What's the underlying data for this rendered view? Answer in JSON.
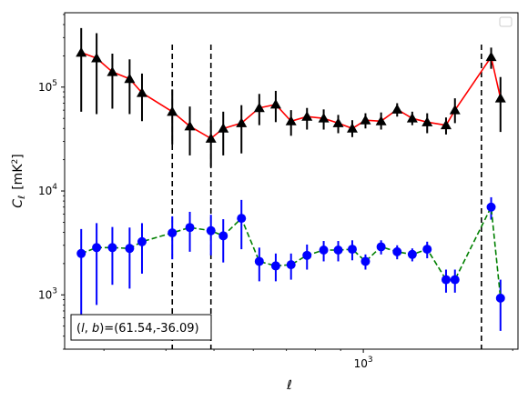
{
  "chart_data": {
    "type": "scatter",
    "xlabel": "ℓ",
    "ylabel_main": "C",
    "ylabel_sub": "ℓ",
    "ylabel_unit": "[mK",
    "ylabel_unit_exp": "2",
    "ylabel_unit_close": "]",
    "xscale": "log",
    "yscale": "log",
    "xlim": [
      250,
      2050
    ],
    "ylim": [
      300,
      520000
    ],
    "yticks": [
      {
        "value": 1000,
        "base": "10",
        "exp": "3"
      },
      {
        "value": 10000,
        "base": "10",
        "exp": "4"
      },
      {
        "value": 100000,
        "base": "10",
        "exp": "5"
      }
    ],
    "xticks": [
      {
        "value": 1000,
        "base": "10",
        "exp": "3"
      }
    ],
    "vlines": [
      412,
      493,
      1730
    ],
    "annotation": "(l, b)=(61.54,-36.09)",
    "annotation_prefix": "(",
    "annotation_l": "l",
    "annotation_sep": ", ",
    "annotation_b": "b",
    "annotation_rest": ")=(61.54,-36.09)",
    "legend": "top-right (empty)",
    "series": [
      {
        "marker": "triangle",
        "marker_color": "#000000",
        "line_color": "#ff0000",
        "line_style": "solid",
        "points": [
          {
            "x": 270,
            "y": 215000,
            "lo": 58000,
            "hi": 370000
          },
          {
            "x": 290,
            "y": 190000,
            "lo": 55000,
            "hi": 330000
          },
          {
            "x": 312,
            "y": 140000,
            "lo": 62000,
            "hi": 210000
          },
          {
            "x": 338,
            "y": 120000,
            "lo": 55000,
            "hi": 185000
          },
          {
            "x": 358,
            "y": 88000,
            "lo": 47000,
            "hi": 135000
          },
          {
            "x": 412,
            "y": 58000,
            "lo": 28000,
            "hi": 95000
          },
          {
            "x": 447,
            "y": 42000,
            "lo": 22000,
            "hi": 65000
          },
          {
            "x": 493,
            "y": 32000,
            "lo": 17000,
            "hi": 48000
          },
          {
            "x": 522,
            "y": 40000,
            "lo": 22000,
            "hi": 58000
          },
          {
            "x": 568,
            "y": 45000,
            "lo": 23000,
            "hi": 67000
          },
          {
            "x": 617,
            "y": 63000,
            "lo": 43000,
            "hi": 86000
          },
          {
            "x": 666,
            "y": 68000,
            "lo": 46000,
            "hi": 92000
          },
          {
            "x": 715,
            "y": 47000,
            "lo": 34000,
            "hi": 60000
          },
          {
            "x": 770,
            "y": 52000,
            "lo": 39000,
            "hi": 63000
          },
          {
            "x": 832,
            "y": 50000,
            "lo": 39000,
            "hi": 61000
          },
          {
            "x": 890,
            "y": 45000,
            "lo": 36000,
            "hi": 54000
          },
          {
            "x": 950,
            "y": 40000,
            "lo": 33000,
            "hi": 48000
          },
          {
            "x": 1010,
            "y": 48000,
            "lo": 40000,
            "hi": 56000
          },
          {
            "x": 1086,
            "y": 47000,
            "lo": 39000,
            "hi": 57000
          },
          {
            "x": 1170,
            "y": 61000,
            "lo": 52000,
            "hi": 70000
          },
          {
            "x": 1255,
            "y": 50000,
            "lo": 43000,
            "hi": 58000
          },
          {
            "x": 1345,
            "y": 46000,
            "lo": 36000,
            "hi": 56000
          },
          {
            "x": 1468,
            "y": 43000,
            "lo": 35000,
            "hi": 51000
          },
          {
            "x": 1530,
            "y": 60000,
            "lo": 45000,
            "hi": 78000
          },
          {
            "x": 1810,
            "y": 195000,
            "lo": 150000,
            "hi": 240000
          },
          {
            "x": 1890,
            "y": 78000,
            "lo": 37000,
            "hi": 125000
          }
        ]
      },
      {
        "marker": "circle",
        "marker_color": "#0000ff",
        "line_color": "#008000",
        "line_style": "dashed",
        "points": [
          {
            "x": 270,
            "y": 2500,
            "lo": 650,
            "hi": 4300
          },
          {
            "x": 290,
            "y": 2850,
            "lo": 800,
            "hi": 4900
          },
          {
            "x": 312,
            "y": 2850,
            "lo": 1250,
            "hi": 4500
          },
          {
            "x": 338,
            "y": 2800,
            "lo": 1150,
            "hi": 4450
          },
          {
            "x": 358,
            "y": 3250,
            "lo": 1600,
            "hi": 4900
          },
          {
            "x": 412,
            "y": 3950,
            "lo": 2200,
            "hi": 5700
          },
          {
            "x": 447,
            "y": 4450,
            "lo": 2600,
            "hi": 6300
          },
          {
            "x": 493,
            "y": 4150,
            "lo": 2400,
            "hi": 5900
          },
          {
            "x": 522,
            "y": 3700,
            "lo": 2050,
            "hi": 5350
          },
          {
            "x": 568,
            "y": 5450,
            "lo": 2750,
            "hi": 8200
          },
          {
            "x": 617,
            "y": 2100,
            "lo": 1350,
            "hi": 2850
          },
          {
            "x": 666,
            "y": 1900,
            "lo": 1350,
            "hi": 2500
          },
          {
            "x": 715,
            "y": 1950,
            "lo": 1400,
            "hi": 2500
          },
          {
            "x": 770,
            "y": 2400,
            "lo": 1750,
            "hi": 3050
          },
          {
            "x": 832,
            "y": 2700,
            "lo": 2100,
            "hi": 3300
          },
          {
            "x": 890,
            "y": 2700,
            "lo": 2100,
            "hi": 3300
          },
          {
            "x": 950,
            "y": 2750,
            "lo": 2150,
            "hi": 3350
          },
          {
            "x": 1010,
            "y": 2100,
            "lo": 1750,
            "hi": 2450
          },
          {
            "x": 1086,
            "y": 2900,
            "lo": 2450,
            "hi": 3350
          },
          {
            "x": 1170,
            "y": 2600,
            "lo": 2200,
            "hi": 3000
          },
          {
            "x": 1255,
            "y": 2450,
            "lo": 2100,
            "hi": 2800
          },
          {
            "x": 1345,
            "y": 2750,
            "lo": 2250,
            "hi": 3250
          },
          {
            "x": 1468,
            "y": 1400,
            "lo": 1050,
            "hi": 1750
          },
          {
            "x": 1530,
            "y": 1400,
            "lo": 1050,
            "hi": 1750
          },
          {
            "x": 1810,
            "y": 7000,
            "lo": 5300,
            "hi": 8700
          },
          {
            "x": 1890,
            "y": 930,
            "lo": 450,
            "hi": 1400
          }
        ]
      }
    ]
  }
}
